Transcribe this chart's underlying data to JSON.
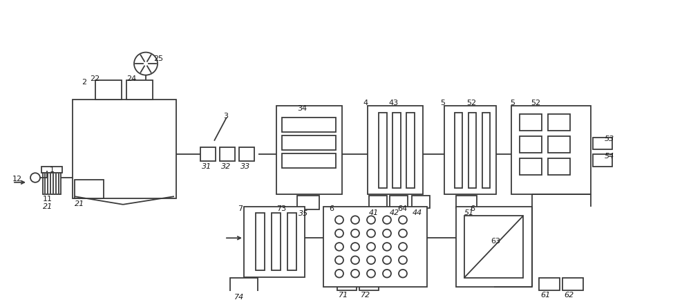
{
  "bg_color": "#ffffff",
  "line_color": "#3a3a3a",
  "label_color": "#1a1a1a",
  "fig_width": 10.0,
  "fig_height": 4.34
}
